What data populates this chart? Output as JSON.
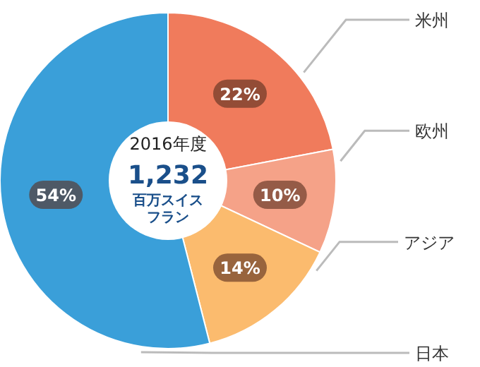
{
  "chart_data": {
    "type": "donut",
    "categories": [
      "米州",
      "欧州",
      "アジア",
      "日本"
    ],
    "values": [
      22,
      10,
      14,
      54
    ],
    "colors": [
      "#f07b5c",
      "#f5a288",
      "#fbbb6e",
      "#3a9fd9"
    ],
    "value_labels": [
      "22%",
      "10%",
      "14%",
      "54%"
    ],
    "annotations": [
      "2016年度",
      "1,232",
      "百万スイス",
      "フラン"
    ]
  }
}
